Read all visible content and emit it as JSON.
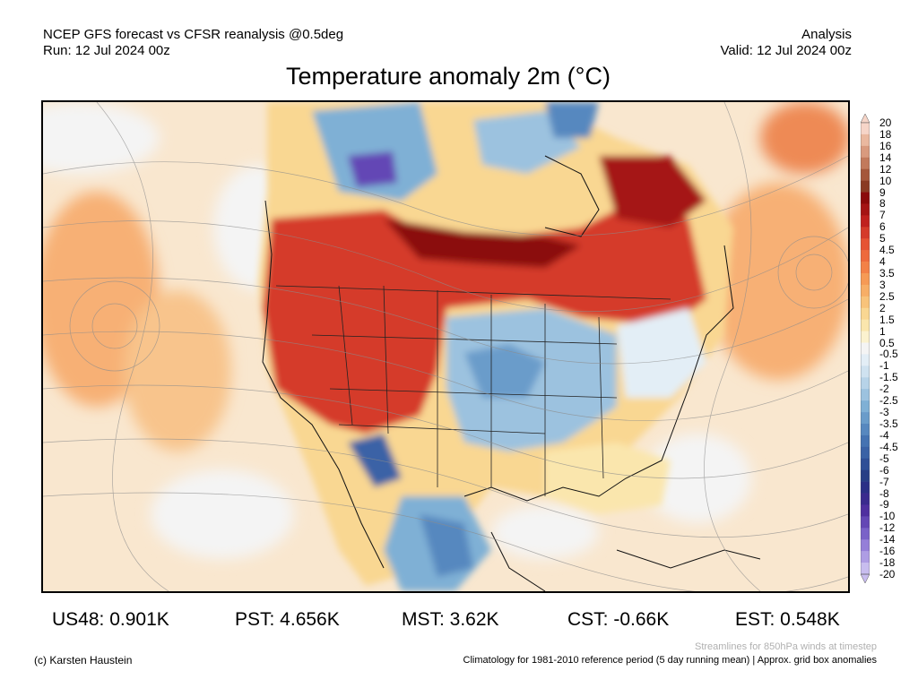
{
  "header": {
    "left_line1": "NCEP GFS forecast vs CFSR reanalysis @0.5deg",
    "left_line2": "Run: 12 Jul 2024 00z",
    "right_line1": "Analysis",
    "right_line2": "Valid: 12 Jul 2024 00z"
  },
  "title": "Temperature anomaly 2m (°C)",
  "legend": {
    "labels": [
      "20",
      "18",
      "16",
      "14",
      "12",
      "10",
      "9",
      "8",
      "7",
      "6",
      "5",
      "4.5",
      "4",
      "3.5",
      "3",
      "2.5",
      "2",
      "1.5",
      "1",
      "0.5",
      "-0.5",
      "-1",
      "-1.5",
      "-2",
      "-2.5",
      "-3",
      "-3.5",
      "-4",
      "-4.5",
      "-5",
      "-6",
      "-7",
      "-8",
      "-9",
      "-10",
      "-12",
      "-14",
      "-16",
      "-18",
      "-20"
    ],
    "colors": [
      "#f6d5c8",
      "#eab89f",
      "#d99a7e",
      "#c27a5c",
      "#a5573b",
      "#8a3a22",
      "#8b0a0a",
      "#a51414",
      "#c0201e",
      "#d53a2a",
      "#e65334",
      "#ee6a3c",
      "#f38147",
      "#f69a55",
      "#f7ae66",
      "#f8c37a",
      "#f9d792",
      "#fae6ad",
      "#fbf2cf",
      "#f4f4f4",
      "#e3eef6",
      "#cfe2f0",
      "#b7d3e8",
      "#9cc2df",
      "#7fb0d5",
      "#6a9cca",
      "#5788bf",
      "#4573b2",
      "#3a62a6",
      "#2f4f97",
      "#283e86",
      "#2b2f86",
      "#3a2a8e",
      "#4f2f9f",
      "#6447b5",
      "#7a62c8",
      "#957fd8",
      "#ae9de4",
      "#c8bdef"
    ]
  },
  "stats": [
    {
      "label": "US48: 0.901K"
    },
    {
      "label": "PST: 4.656K"
    },
    {
      "label": "MST: 3.62K"
    },
    {
      "label": "CST: -0.66K"
    },
    {
      "label": "EST: 0.548K"
    }
  ],
  "footer": {
    "credit": "(c) Karsten Haustein",
    "streamlines_note": "Streamlines for 850hPa winds at timestep",
    "climatology": "Climatology for 1981-2010 reference period (5 day running mean) | Approx. grid box anomalies"
  }
}
